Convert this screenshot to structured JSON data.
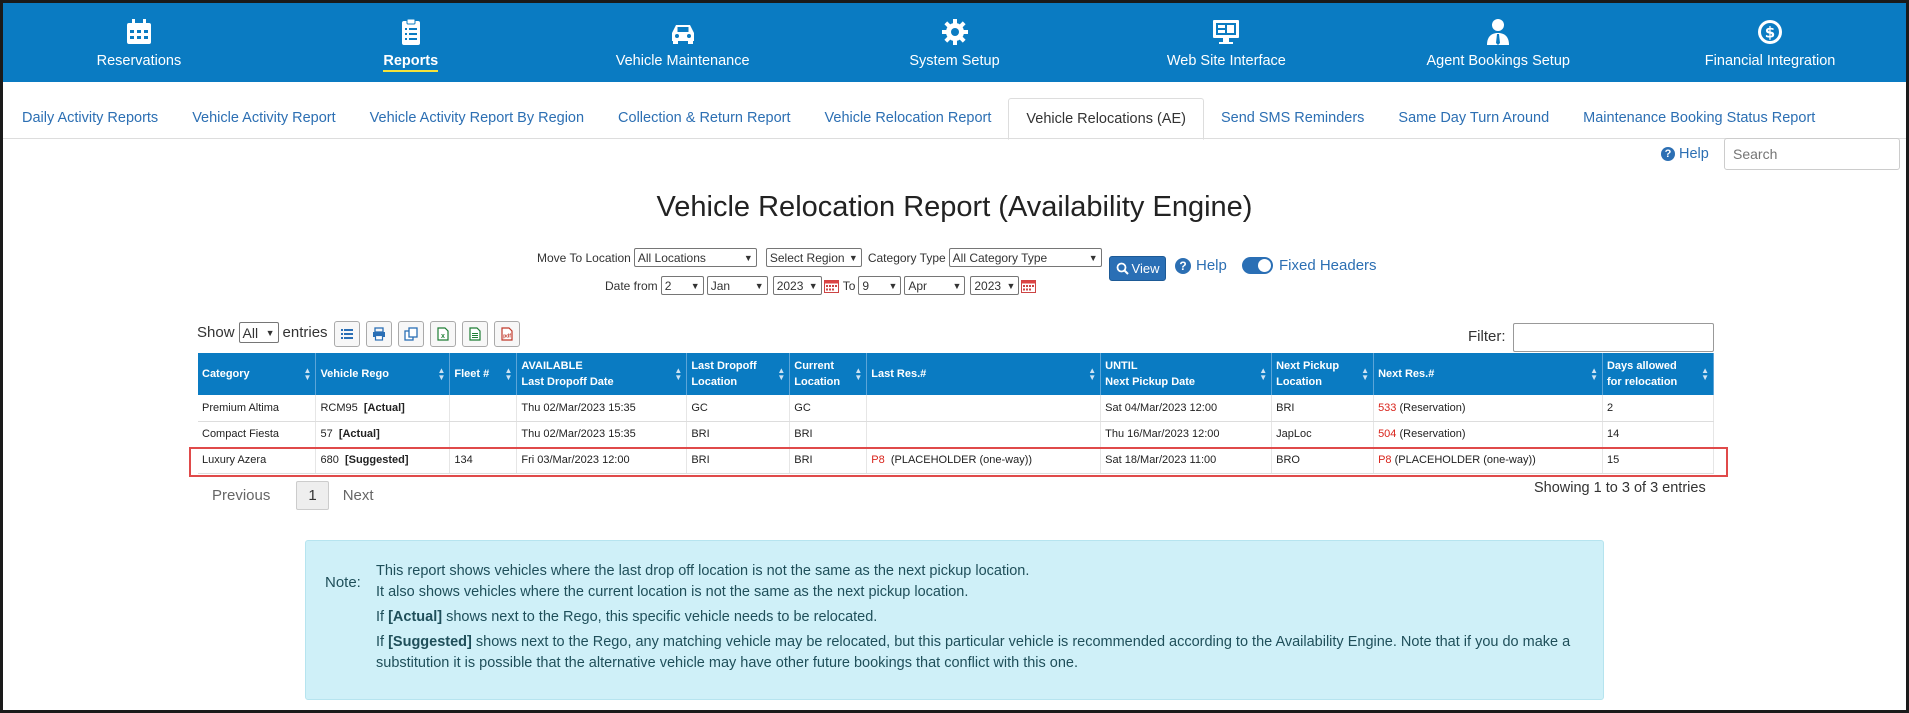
{
  "topnav": [
    {
      "label": "Reservations",
      "icon": "calendar-icon",
      "active": false
    },
    {
      "label": "Reports",
      "icon": "clipboard-icon",
      "active": true
    },
    {
      "label": "Vehicle Maintenance",
      "icon": "car-icon",
      "active": false
    },
    {
      "label": "System Setup",
      "icon": "gear-icon",
      "active": false
    },
    {
      "label": "Web Site Interface",
      "icon": "monitor-icon",
      "active": false
    },
    {
      "label": "Agent Bookings Setup",
      "icon": "agent-icon",
      "active": false
    },
    {
      "label": "Financial Integration",
      "icon": "dollar-icon",
      "active": false
    }
  ],
  "subnav": [
    "Daily Activity Reports",
    "Vehicle Activity Report",
    "Vehicle Activity Report By Region",
    "Collection & Return Report",
    "Vehicle Relocation Report",
    "Vehicle Relocations (AE)",
    "Send SMS Reminders",
    "Same Day Turn Around",
    "Maintenance Booking Status Report"
  ],
  "help_label": "Help",
  "search_placeholder": "Search",
  "page_title": "Vehicle Relocation Report (Availability Engine)",
  "filters": {
    "move_to_label": "Move To Location",
    "move_to_value": "All Locations",
    "region_value": "Select Region",
    "category_type_label": "Category Type",
    "category_type_value": "All Category Type",
    "view_label": "View",
    "help_label": "Help",
    "fixed_headers_label": "Fixed Headers",
    "date_from_label": "Date from",
    "from_day": "2",
    "from_month": "Jan",
    "from_year": "2023",
    "to_label": "To",
    "to_day": "9",
    "to_month": "Apr",
    "to_year": "2023"
  },
  "table_controls": {
    "show_label": "Show",
    "entries_value": "All",
    "entries_label": "entries",
    "filter_label": "Filter:"
  },
  "table": {
    "headers": [
      [
        "Category"
      ],
      [
        "Vehicle Rego"
      ],
      [
        "Fleet #"
      ],
      [
        "AVAILABLE",
        "Last Dropoff Date"
      ],
      [
        "Last Dropoff",
        "Location"
      ],
      [
        "Current",
        "Location"
      ],
      [
        "Last Res.#"
      ],
      [
        "UNTIL",
        "Next Pickup Date"
      ],
      [
        "Next Pickup",
        "Location"
      ],
      [
        "Next Res.#"
      ],
      [
        "Days allowed",
        "for relocation"
      ]
    ],
    "rows": [
      {
        "category": "Premium Altima",
        "rego": "RCM95",
        "rego_tag": "[Actual]",
        "fleet": "",
        "last_dropoff_date": "Thu 02/Mar/2023 15:35",
        "last_dropoff_loc": "GC",
        "current_loc": "GC",
        "last_res_num": "",
        "last_res_text": "",
        "next_pickup_date": "Sat 04/Mar/2023 12:00",
        "next_pickup_loc": "BRI",
        "next_res_num": "533",
        "next_res_text": "(Reservation)",
        "days": "2"
      },
      {
        "category": "Compact Fiesta",
        "rego": "57",
        "rego_tag": "[Actual]",
        "fleet": "",
        "last_dropoff_date": "Thu 02/Mar/2023 15:35",
        "last_dropoff_loc": "BRI",
        "current_loc": "BRI",
        "last_res_num": "",
        "last_res_text": "",
        "next_pickup_date": "Thu 16/Mar/2023 12:00",
        "next_pickup_loc": "JapLoc",
        "next_res_num": "504",
        "next_res_text": "(Reservation)",
        "days": "14"
      },
      {
        "category": "Luxury Azera",
        "rego": "680",
        "rego_tag": "[Suggested]",
        "fleet": "134",
        "last_dropoff_date": "Fri 03/Mar/2023 12:00",
        "last_dropoff_loc": "BRI",
        "current_loc": "BRI",
        "last_res_num": "P8",
        "last_res_text": "(PLACEHOLDER (one-way))",
        "next_pickup_date": "Sat 18/Mar/2023 11:00",
        "next_pickup_loc": "BRO",
        "next_res_num": "P8",
        "next_res_text": "(PLACEHOLDER (one-way))",
        "days": "15"
      }
    ]
  },
  "pager": {
    "previous": "Previous",
    "current": "1",
    "next": "Next",
    "showing": "Showing 1 to 3 of 3 entries"
  },
  "note": {
    "label": "Note:",
    "line1": "This report shows vehicles where the last drop off location is not the same as the next pickup location.",
    "line2": "It also shows vehicles where the current location is not the same as the next pickup location.",
    "line3_pre": "If ",
    "line3_tag": "[Actual]",
    "line3_post": " shows next to the Rego, this specific vehicle needs to be relocated.",
    "line4_pre": "If ",
    "line4_tag": "[Suggested]",
    "line4_post": " shows next to the Rego, any matching vehicle may be relocated, but this particular vehicle is recommended according to the Availability Engine. Note that if you do make a substitution it is possible that the alternative vehicle may have other future bookings that conflict with this one."
  },
  "colors": {
    "nav_bg": "#0a7bc2",
    "link": "#2c6fb3",
    "accent_red": "#d9241c",
    "note_bg": "#cff0f8",
    "highlight_border": "#e04a4a"
  }
}
